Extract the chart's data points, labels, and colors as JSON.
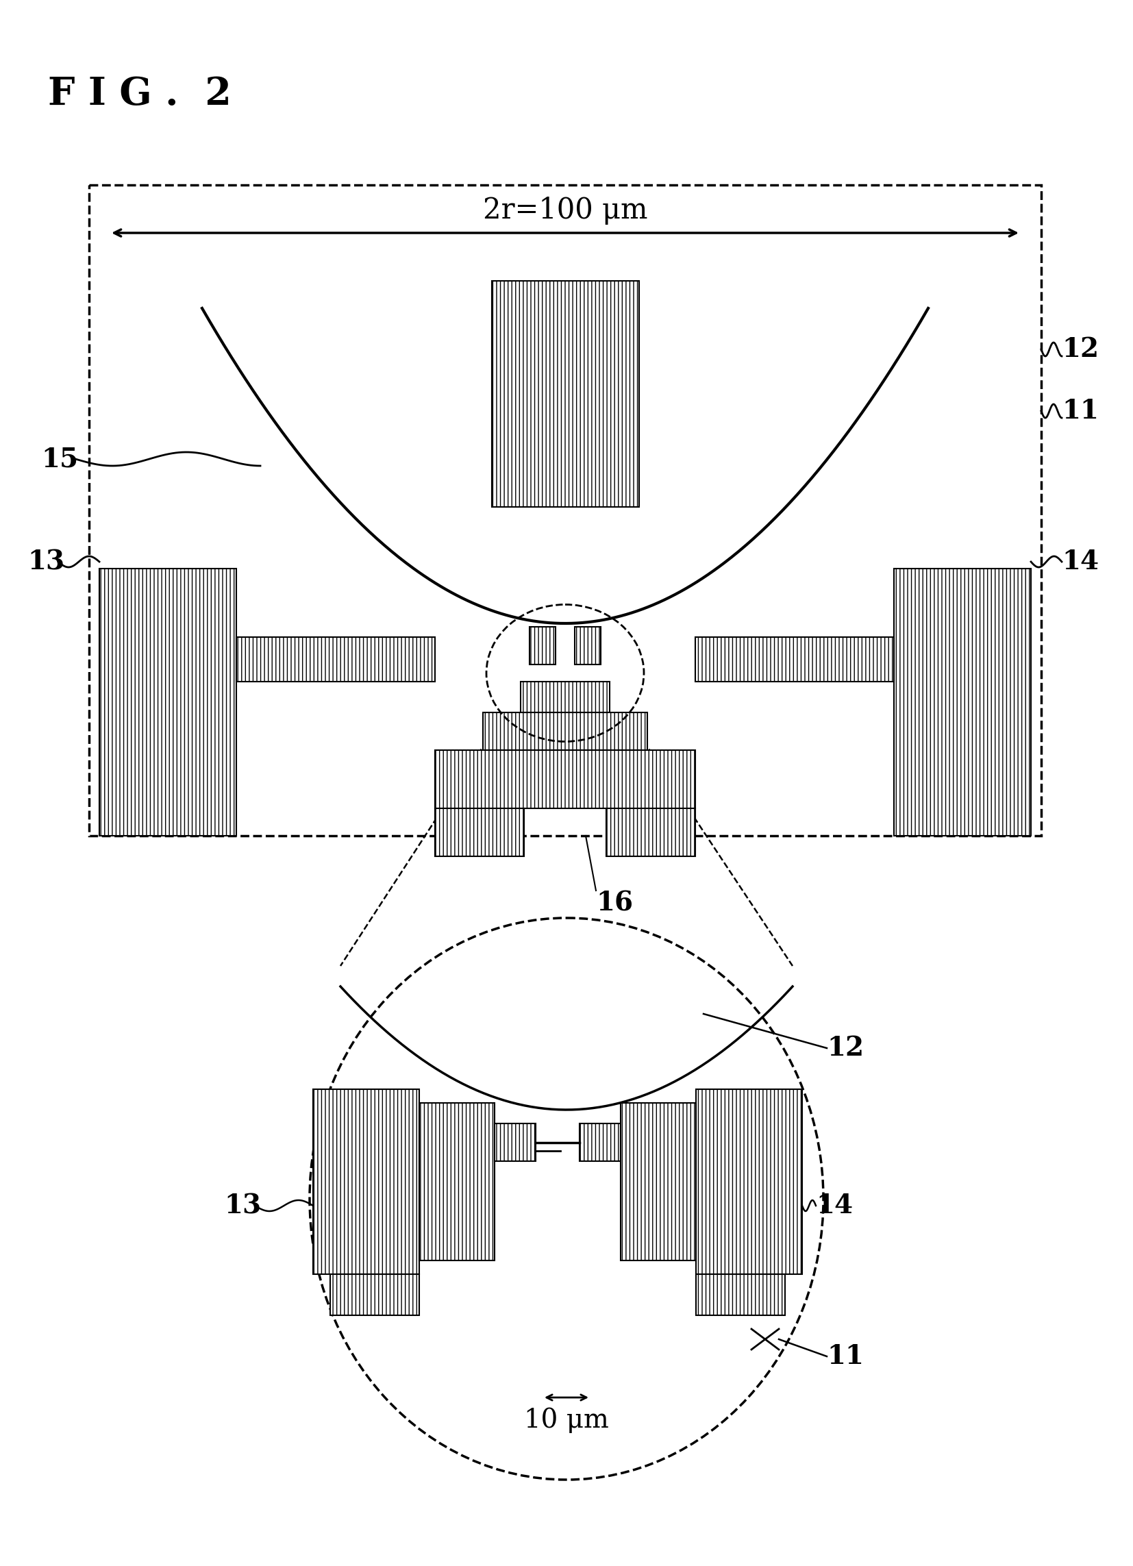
{
  "fig_label": "F I G .  2",
  "background_color": "#ffffff",
  "line_color": "#000000",
  "annotation_12_upper": "12",
  "annotation_11_upper": "11",
  "annotation_15": "15",
  "annotation_13_upper": "13",
  "annotation_14_upper": "14",
  "annotation_16": "16",
  "annotation_12_lower": "12",
  "annotation_13_lower": "13",
  "annotation_14_lower": "14",
  "annotation_11_lower": "11",
  "dim_label_top": "2r=100 μm",
  "dim_label_bottom": "10 μm"
}
